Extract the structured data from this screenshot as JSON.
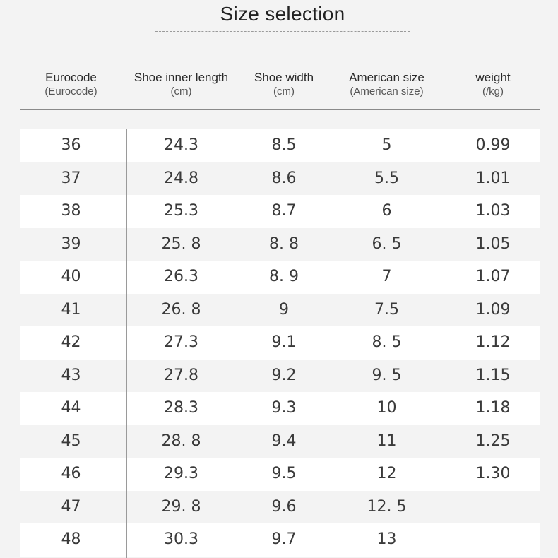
{
  "title": "Size selection",
  "columns": [
    {
      "label": "Eurocode",
      "sub": "(Eurocode)"
    },
    {
      "label": "Shoe inner length",
      "sub": "(cm)"
    },
    {
      "label": "Shoe width",
      "sub": "(cm)"
    },
    {
      "label": "American size",
      "sub": "(American size)"
    },
    {
      "label": "weight",
      "sub": "(/kg)"
    }
  ],
  "rows": [
    {
      "euro": "36",
      "length": "24.3",
      "width": "8.5",
      "us": "5",
      "weight": "0.99"
    },
    {
      "euro": "37",
      "length": "24.8",
      "width": "8.6",
      "us": "5.5",
      "weight": "1.01"
    },
    {
      "euro": "38",
      "length": "25.3",
      "width": "8.7",
      "us": "6",
      "weight": "1.03"
    },
    {
      "euro": "39",
      "length": "25. 8",
      "width": "8. 8",
      "us": "6. 5",
      "weight": "1.05"
    },
    {
      "euro": "40",
      "length": "26.3",
      "width": "8. 9",
      "us": "7",
      "weight": "1.07"
    },
    {
      "euro": "41",
      "length": "26. 8",
      "width": "9",
      "us": "7.5",
      "weight": "1.09"
    },
    {
      "euro": "42",
      "length": "27.3",
      "width": "9.1",
      "us": "8. 5",
      "weight": "1.12"
    },
    {
      "euro": "43",
      "length": "27.8",
      "width": "9.2",
      "us": "9. 5",
      "weight": "1.15"
    },
    {
      "euro": "44",
      "length": "28.3",
      "width": "9.3",
      "us": "10",
      "weight": "1.18"
    },
    {
      "euro": "45",
      "length": "28. 8",
      "width": "9.4",
      "us": "11",
      "weight": "1.25"
    },
    {
      "euro": "46",
      "length": "29.3",
      "width": "9.5",
      "us": "12",
      "weight": "1.30"
    },
    {
      "euro": "47",
      "length": "29. 8",
      "width": "9.6",
      "us": "12. 5",
      "weight": ""
    },
    {
      "euro": "48",
      "length": "30.3",
      "width": "9.7",
      "us": "13",
      "weight": ""
    }
  ]
}
